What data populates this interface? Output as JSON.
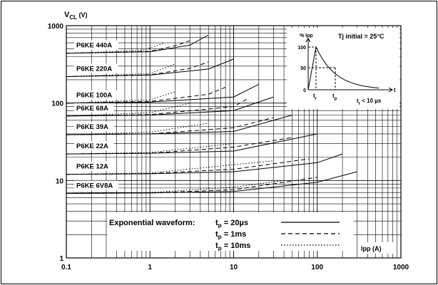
{
  "chart_data": {
    "type": "line",
    "ylabel_main": "V",
    "ylabel_sub": "CL",
    "ylabel_unit": "(V)",
    "xlabel": "Ipp (A)",
    "x_scale": "log",
    "y_scale": "log",
    "xlim": [
      0.1,
      1000
    ],
    "ylim": [
      1,
      1000
    ],
    "x_ticks": [
      0.1,
      1,
      10,
      100,
      1000
    ],
    "x_tick_labels": [
      "0.1",
      "1",
      "10",
      "100",
      "1000"
    ],
    "y_ticks": [
      1,
      10,
      100,
      1000
    ],
    "y_tick_labels": [
      "1",
      "10",
      "100",
      "1000"
    ],
    "grid": true,
    "devices": [
      {
        "label": "P6KE 440A",
        "values": {
          "20us": [
            [
              0.1,
              440
            ],
            [
              1,
              460
            ],
            [
              3,
              560
            ],
            [
              5,
              760
            ]
          ],
          "1ms": [
            [
              0.1,
              440
            ],
            [
              1,
              465
            ],
            [
              2,
              550
            ],
            [
              3,
              640
            ]
          ],
          "10ms": [
            [
              0.1,
              440
            ],
            [
              0.8,
              475
            ],
            [
              1.5,
              600
            ]
          ]
        }
      },
      {
        "label": "P6KE 220A",
        "values": {
          "20us": [
            [
              0.1,
              220
            ],
            [
              1,
              230
            ],
            [
              5,
              275
            ],
            [
              10,
              370
            ]
          ],
          "1ms": [
            [
              0.1,
              220
            ],
            [
              1,
              232
            ],
            [
              3,
              280
            ],
            [
              5,
              340
            ]
          ],
          "10ms": [
            [
              0.1,
              220
            ],
            [
              1,
              240
            ],
            [
              2,
              320
            ]
          ]
        }
      },
      {
        "label": "P6KE 100A",
        "values": {
          "20us": [
            [
              0.1,
              100
            ],
            [
              1,
              103
            ],
            [
              10,
              120
            ],
            [
              20,
              175
            ]
          ],
          "1ms": [
            [
              0.1,
              100
            ],
            [
              1,
              105
            ],
            [
              5,
              130
            ],
            [
              8,
              160
            ]
          ],
          "10ms": [
            [
              0.1,
              100
            ],
            [
              1,
              110
            ],
            [
              2,
              140
            ]
          ]
        }
      },
      {
        "label": "P6KE 68A",
        "values": {
          "20us": [
            [
              0.1,
              68
            ],
            [
              1,
              70
            ],
            [
              10,
              80
            ],
            [
              30,
              120
            ]
          ],
          "1ms": [
            [
              0.1,
              68
            ],
            [
              1,
              71
            ],
            [
              10,
              90
            ],
            [
              15,
              115
            ]
          ],
          "10ms": [
            [
              0.1,
              68
            ],
            [
              1,
              75
            ],
            [
              3,
              100
            ]
          ]
        }
      },
      {
        "label": "P6KE 39A",
        "values": {
          "20us": [
            [
              0.1,
              39
            ],
            [
              1,
              40
            ],
            [
              10,
              43
            ],
            [
              50,
              70
            ]
          ],
          "1ms": [
            [
              0.1,
              39
            ],
            [
              1,
              40
            ],
            [
              10,
              48
            ],
            [
              30,
              65
            ]
          ],
          "10ms": [
            [
              0.1,
              39
            ],
            [
              1,
              42
            ],
            [
              5,
              55
            ]
          ]
        }
      },
      {
        "label": "P6KE 22A",
        "values": {
          "20us": [
            [
              0.1,
              22
            ],
            [
              1,
              22.5
            ],
            [
              10,
              24
            ],
            [
              100,
              40
            ]
          ],
          "1ms": [
            [
              0.1,
              22
            ],
            [
              1,
              22.5
            ],
            [
              10,
              27
            ],
            [
              50,
              36
            ]
          ],
          "10ms": [
            [
              0.1,
              22
            ],
            [
              1,
              23
            ],
            [
              10,
              30
            ]
          ]
        }
      },
      {
        "label": "P6KE 12A",
        "values": {
          "20us": [
            [
              0.1,
              12
            ],
            [
              1,
              12.2
            ],
            [
              10,
              13
            ],
            [
              100,
              17
            ],
            [
              200,
              22
            ]
          ],
          "1ms": [
            [
              0.1,
              12
            ],
            [
              1,
              12.3
            ],
            [
              10,
              14
            ],
            [
              80,
              19
            ]
          ],
          "10ms": [
            [
              0.1,
              12
            ],
            [
              1,
              12.5
            ],
            [
              10,
              16
            ],
            [
              30,
              18
            ]
          ]
        }
      },
      {
        "label": "P6KE 6V8A",
        "values": {
          "20us": [
            [
              0.1,
              6.8
            ],
            [
              1,
              6.9
            ],
            [
              10,
              7.2
            ],
            [
              100,
              9.5
            ],
            [
              300,
              13
            ]
          ],
          "1ms": [
            [
              0.1,
              6.8
            ],
            [
              1,
              6.9
            ],
            [
              10,
              7.6
            ],
            [
              100,
              11
            ]
          ],
          "10ms": [
            [
              0.1,
              6.8
            ],
            [
              1,
              7
            ],
            [
              10,
              8.2
            ],
            [
              40,
              10
            ]
          ]
        }
      }
    ],
    "legend": {
      "title": "Exponential waveform:",
      "entries": [
        {
          "key": "20us",
          "pre": "t",
          "sub": "p",
          "post": " = 20µs",
          "style": "solid"
        },
        {
          "key": "1ms",
          "pre": "t",
          "sub": "p",
          "post": " = 1ms",
          "style": "dashed"
        },
        {
          "key": "10ms",
          "pre": "t",
          "sub": "p",
          "post": " = 10ms",
          "style": "dotted"
        }
      ]
    },
    "inset": {
      "ylabel": "% Ipp",
      "y_ticks": [
        "100",
        "50",
        "0"
      ],
      "x_axis_label": "t",
      "tr_label": "t",
      "tr_sub": "r",
      "tp_label": "t",
      "tp_sub": "p",
      "note_pre": "t",
      "note_sub": "r",
      "note_post": " < 10 µs",
      "tj_label": "Tj initial = 25°C"
    }
  }
}
